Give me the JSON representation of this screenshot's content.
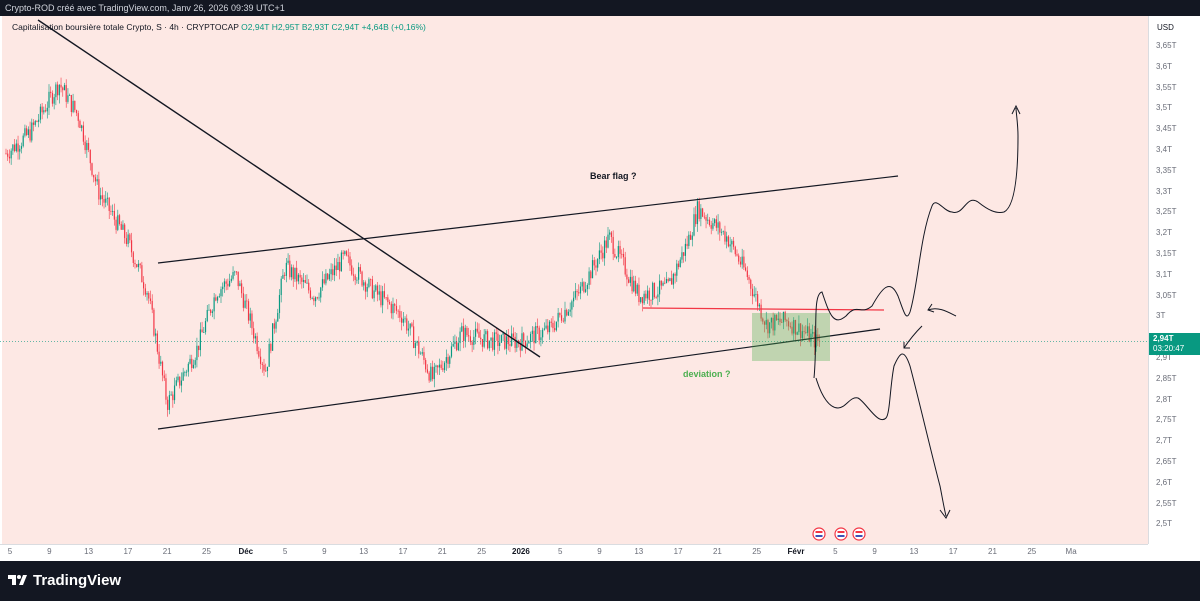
{
  "header": {
    "watermark": "Crypto-ROD créé avec TradingView.com, Janv 26, 2026 09:39 UTC+1"
  },
  "legend": {
    "symbol": "Capitalisation boursière totale Crypto, S · 4h · CRYPTOCAP",
    "open": "O2,94T",
    "high": "H2,95T",
    "low": "B2,93T",
    "close": "C2,94T",
    "change": "+4,64B (+0,16%)"
  },
  "price_scale": {
    "currency": "USD",
    "labels": [
      "3,65T",
      "3,6T",
      "3,55T",
      "3,5T",
      "3,45T",
      "3,4T",
      "3,35T",
      "3,3T",
      "3,25T",
      "3,2T",
      "3,15T",
      "3,1T",
      "3,05T",
      "3T",
      "2,95T",
      "2,9T",
      "2,85T",
      "2,8T",
      "2,75T",
      "2,7T",
      "2,65T",
      "2,6T",
      "2,55T",
      "2,5T"
    ],
    "last_price": "2,94T",
    "countdown": "03:20:47"
  },
  "time_axis": {
    "labels": [
      "5",
      "9",
      "13",
      "17",
      "21",
      "25",
      "Déc",
      "5",
      "9",
      "13",
      "17",
      "21",
      "25",
      "2026",
      "5",
      "9",
      "13",
      "17",
      "21",
      "25",
      "Févr",
      "5",
      "9",
      "13",
      "17",
      "21",
      "25",
      "Ma"
    ]
  },
  "annotations": {
    "bear_flag": "Bear flag ?",
    "deviation": "deviation ?"
  },
  "colors": {
    "up": "#089981",
    "down": "#f23645",
    "background": "#fde8e4",
    "deviation_text": "#4caf50",
    "support_line": "#f23645"
  },
  "footer": {
    "brand": "TradingView"
  },
  "chart_data": {
    "type": "candlestick",
    "ylabel": "USD",
    "close_path": [
      {
        "date": "Nov 4",
        "value": 3.38
      },
      {
        "date": "Nov 7",
        "value": 3.44
      },
      {
        "date": "Nov 10",
        "value": 3.56
      },
      {
        "date": "Nov 12",
        "value": 3.48
      },
      {
        "date": "Nov 14",
        "value": 3.3
      },
      {
        "date": "Nov 17",
        "value": 3.18
      },
      {
        "date": "Nov 19",
        "value": 3.06
      },
      {
        "date": "Nov 21",
        "value": 2.79
      },
      {
        "date": "Nov 24",
        "value": 2.92
      },
      {
        "date": "Nov 26",
        "value": 3.06
      },
      {
        "date": "Nov 28",
        "value": 3.1
      },
      {
        "date": "Dec 1",
        "value": 2.87
      },
      {
        "date": "Dec 3",
        "value": 3.12
      },
      {
        "date": "Dec 6",
        "value": 3.05
      },
      {
        "date": "Dec 9",
        "value": 3.14
      },
      {
        "date": "Dec 12",
        "value": 3.06
      },
      {
        "date": "Dec 15",
        "value": 3.0
      },
      {
        "date": "Dec 18",
        "value": 2.85
      },
      {
        "date": "Dec 21",
        "value": 2.96
      },
      {
        "date": "Dec 24",
        "value": 2.94
      },
      {
        "date": "Dec 27",
        "value": 2.94
      },
      {
        "date": "Dec 30",
        "value": 2.97
      },
      {
        "date": "Jan 2",
        "value": 3.06
      },
      {
        "date": "Jan 5",
        "value": 3.19
      },
      {
        "date": "Jan 8",
        "value": 3.05
      },
      {
        "date": "Jan 11",
        "value": 3.07
      },
      {
        "date": "Jan 13",
        "value": 3.18
      },
      {
        "date": "Jan 14",
        "value": 3.26
      },
      {
        "date": "Jan 17",
        "value": 3.19
      },
      {
        "date": "Jan 19",
        "value": 3.1
      },
      {
        "date": "Jan 21",
        "value": 2.98
      },
      {
        "date": "Jan 23",
        "value": 2.99
      },
      {
        "date": "Jan 25",
        "value": 2.96
      },
      {
        "date": "Jan 26",
        "value": 2.94
      }
    ],
    "last_value": 2.94,
    "ylim": [
      2.49,
      3.67
    ]
  }
}
